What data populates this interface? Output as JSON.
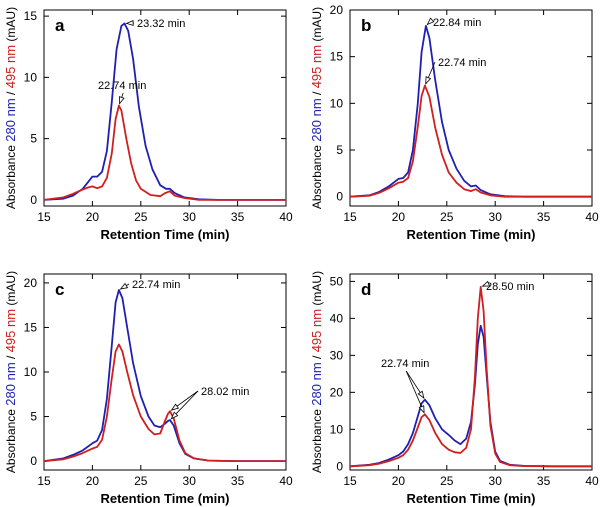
{
  "figure": {
    "xlabel": "Retention Time (min)",
    "ylabel_prefix": "Absorbance ",
    "ylabel_280": "280 nm",
    "ylabel_slash": " / ",
    "ylabel_495": "495 nm",
    "ylabel_suffix": " (mAU)",
    "color_280": "#1f1fb4",
    "color_495": "#d01f1f"
  },
  "chart_data": [
    {
      "panel": "a",
      "type": "line",
      "xlim": [
        15,
        40
      ],
      "ylim": [
        -0.5,
        15.5
      ],
      "xticks": [
        15,
        20,
        25,
        30,
        35,
        40
      ],
      "yticks": [
        0,
        5,
        10,
        15
      ],
      "xlabel": "Retention Time (min)",
      "series": [
        {
          "name": "280 nm",
          "color": "#1f1fb4",
          "x": [
            15,
            17,
            18,
            19,
            19.5,
            20,
            20.5,
            21,
            21.5,
            22,
            22.5,
            23,
            23.32,
            23.7,
            24.2,
            24.8,
            25.5,
            26.2,
            27,
            27.6,
            28,
            28.5,
            29.5,
            31,
            33,
            36,
            40
          ],
          "y": [
            0,
            0.1,
            0.35,
            0.9,
            1.4,
            1.9,
            1.9,
            2.3,
            4,
            8,
            12.3,
            14.2,
            14.4,
            13.8,
            11.5,
            7.6,
            4.4,
            2.5,
            1.2,
            0.9,
            0.9,
            0.55,
            0.2,
            0.05,
            0,
            0,
            0
          ]
        },
        {
          "name": "495 nm",
          "color": "#d01f1f",
          "x": [
            15,
            17,
            18,
            19,
            19.5,
            20,
            20.5,
            21,
            21.5,
            22,
            22.4,
            22.74,
            23,
            23.5,
            24,
            24.5,
            25,
            26,
            27,
            27.5,
            28,
            28.5,
            29.5,
            31,
            33,
            36,
            40
          ],
          "y": [
            0,
            0.2,
            0.5,
            0.85,
            1,
            1.1,
            0.95,
            1.1,
            1.8,
            3.8,
            6.6,
            7.7,
            7.3,
            5,
            3,
            1.6,
            0.9,
            0.4,
            0.3,
            0.55,
            0.7,
            0.35,
            0.15,
            0,
            0,
            0,
            0
          ]
        }
      ],
      "annotations": [
        {
          "text": "23.32 min",
          "x": 23.32,
          "y": 14.4
        },
        {
          "text": "22.74 min",
          "x": 22.74,
          "y": 7.7
        }
      ]
    },
    {
      "panel": "b",
      "type": "line",
      "xlim": [
        15,
        40
      ],
      "ylim": [
        -1,
        20
      ],
      "xticks": [
        15,
        20,
        25,
        30,
        35,
        40
      ],
      "yticks": [
        0,
        5,
        10,
        15,
        20
      ],
      "xlabel": "Retention Time (min)",
      "series": [
        {
          "name": "280 nm",
          "color": "#1f1fb4",
          "x": [
            15,
            17,
            18,
            19,
            20,
            20.5,
            21,
            21.5,
            22,
            22.4,
            22.84,
            23.2,
            23.8,
            24.5,
            25.2,
            26,
            26.8,
            27.5,
            28,
            28.5,
            29.5,
            31,
            33,
            36,
            40
          ],
          "y": [
            0,
            0.15,
            0.5,
            1.1,
            1.9,
            2,
            2.6,
            5,
            10,
            15.5,
            18.3,
            17,
            12.5,
            8,
            5,
            3,
            1.7,
            1.1,
            1.2,
            0.7,
            0.25,
            0.05,
            0,
            0,
            0
          ]
        },
        {
          "name": "495 nm",
          "color": "#d01f1f",
          "x": [
            15,
            17,
            18,
            19,
            20,
            20.5,
            21,
            21.5,
            22,
            22.4,
            22.74,
            23.2,
            23.8,
            24.5,
            25.2,
            26,
            26.8,
            27.5,
            28,
            28.5,
            29.5,
            31,
            33,
            36,
            40
          ],
          "y": [
            0,
            0.1,
            0.4,
            0.9,
            1.5,
            1.6,
            2,
            3.8,
            7.5,
            10.8,
            11.9,
            10.7,
            7.4,
            4.5,
            2.6,
            1.5,
            0.8,
            0.6,
            0.8,
            0.45,
            0.15,
            0,
            0,
            0,
            0
          ]
        }
      ],
      "annotations": [
        {
          "text": "22.84 min",
          "x": 22.84,
          "y": 18.3
        },
        {
          "text": "22.74 min",
          "x": 22.74,
          "y": 11.9
        }
      ]
    },
    {
      "panel": "c",
      "type": "line",
      "xlim": [
        15,
        40
      ],
      "ylim": [
        -1,
        21
      ],
      "xticks": [
        15,
        20,
        25,
        30,
        35,
        40
      ],
      "yticks": [
        0,
        5,
        10,
        15,
        20
      ],
      "xlabel": "Retention Time (min)",
      "series": [
        {
          "name": "280 nm",
          "color": "#1f1fb4",
          "x": [
            15,
            17,
            18,
            19,
            20,
            20.5,
            21,
            21.5,
            22,
            22.4,
            22.74,
            23.1,
            23.6,
            24.2,
            25,
            25.8,
            26.4,
            27,
            27.5,
            27.8,
            28.02,
            28.4,
            29,
            29.6,
            30.5,
            32,
            35,
            40
          ],
          "y": [
            0,
            0.3,
            0.7,
            1.2,
            2,
            2.3,
            3.5,
            7,
            13,
            17.8,
            19.2,
            18.3,
            15,
            11,
            7.3,
            5,
            4,
            3.8,
            4.2,
            4.5,
            4.6,
            4,
            2,
            0.8,
            0.3,
            0.05,
            0,
            0
          ]
        },
        {
          "name": "495 nm",
          "color": "#d01f1f",
          "x": [
            15,
            17,
            18,
            19,
            20,
            20.5,
            21,
            21.5,
            22,
            22.4,
            22.74,
            23.1,
            23.6,
            24.2,
            25,
            25.8,
            26.4,
            27,
            27.5,
            27.8,
            28.02,
            28.4,
            29,
            29.6,
            30.5,
            32,
            35,
            40
          ],
          "y": [
            0,
            0.2,
            0.5,
            0.9,
            1.4,
            1.6,
            2.4,
            5,
            9.3,
            12.3,
            13.1,
            12.3,
            10,
            7.4,
            5,
            3.6,
            3,
            3.1,
            4.5,
            5.3,
            5.6,
            4.8,
            2.3,
            0.9,
            0.3,
            0.05,
            0,
            0
          ]
        }
      ],
      "annotations": [
        {
          "text": "22.74 min",
          "x": 22.74,
          "y": 19.2
        },
        {
          "text": "28.02 min",
          "x": 28.02,
          "y": 5.6
        }
      ]
    },
    {
      "panel": "d",
      "type": "line",
      "xlim": [
        15,
        40
      ],
      "ylim": [
        -1,
        52
      ],
      "xticks": [
        15,
        20,
        25,
        30,
        35,
        40
      ],
      "yticks": [
        0,
        10,
        20,
        30,
        40,
        50
      ],
      "xlabel": "Retention Time (min)",
      "series": [
        {
          "name": "280 nm",
          "color": "#1f1fb4",
          "x": [
            15,
            17,
            18,
            19,
            20,
            20.5,
            21,
            21.5,
            22,
            22.4,
            22.74,
            23.2,
            23.8,
            24.5,
            25.2,
            25.8,
            26.4,
            27,
            27.5,
            27.9,
            28.2,
            28.5,
            28.8,
            29.1,
            29.5,
            30,
            30.5,
            31.5,
            33,
            36,
            40
          ],
          "y": [
            0,
            0.4,
            0.9,
            1.8,
            3,
            4,
            6,
            9,
            13.5,
            17,
            18,
            16.5,
            13,
            10,
            8.5,
            7,
            6,
            7.5,
            12,
            22,
            33,
            38,
            35,
            25,
            12,
            4,
            1.5,
            0.4,
            0.1,
            0,
            0
          ]
        },
        {
          "name": "495 nm",
          "color": "#d01f1f",
          "x": [
            15,
            17,
            18,
            19,
            20,
            20.5,
            21,
            21.5,
            22,
            22.4,
            22.74,
            23.2,
            23.8,
            24.5,
            25.2,
            25.8,
            26.4,
            27,
            27.5,
            27.9,
            28.2,
            28.5,
            28.8,
            29.1,
            29.5,
            30,
            30.5,
            31.5,
            33,
            36,
            40
          ],
          "y": [
            0,
            0.3,
            0.7,
            1.4,
            2.3,
            3,
            4.5,
            7,
            10.5,
            13.3,
            14,
            12.5,
            9,
            6,
            4.5,
            3.8,
            3.6,
            5,
            10,
            24,
            40,
            48.5,
            42,
            27,
            11,
            3.5,
            1.2,
            0.3,
            0.05,
            0,
            0
          ]
        }
      ],
      "annotations": [
        {
          "text": "22.74 min",
          "x": 22.74,
          "y": 18
        },
        {
          "text": "28.50 min",
          "x": 28.5,
          "y": 48.5
        }
      ]
    }
  ]
}
